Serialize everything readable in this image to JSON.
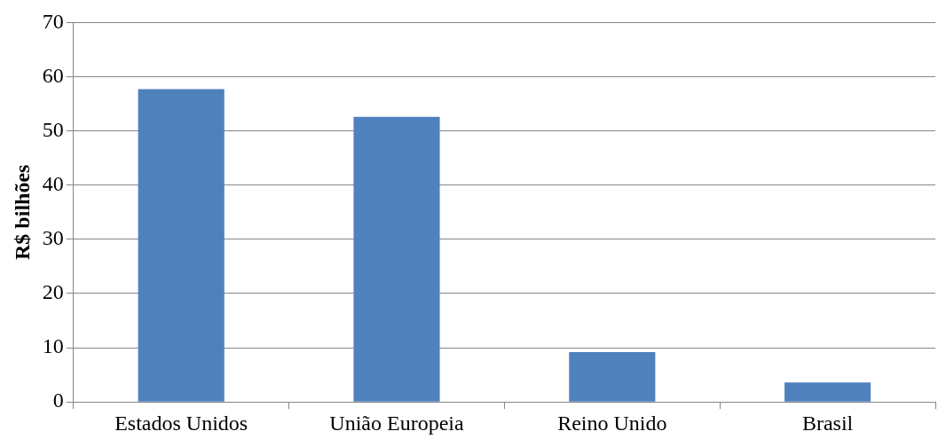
{
  "chart_data": {
    "type": "bar",
    "ylabel": "R$ bilhões",
    "categories": [
      "Estados Unidos",
      "União Europeia",
      "Reino Unido",
      "Brasil"
    ],
    "values": [
      57.7,
      52.6,
      9.2,
      3.6
    ],
    "color": "#4f81bd",
    "ylim": [
      0,
      70
    ],
    "yticks": [
      0,
      10,
      20,
      30,
      40,
      50,
      60,
      70
    ],
    "grid": "y",
    "legend": false
  }
}
